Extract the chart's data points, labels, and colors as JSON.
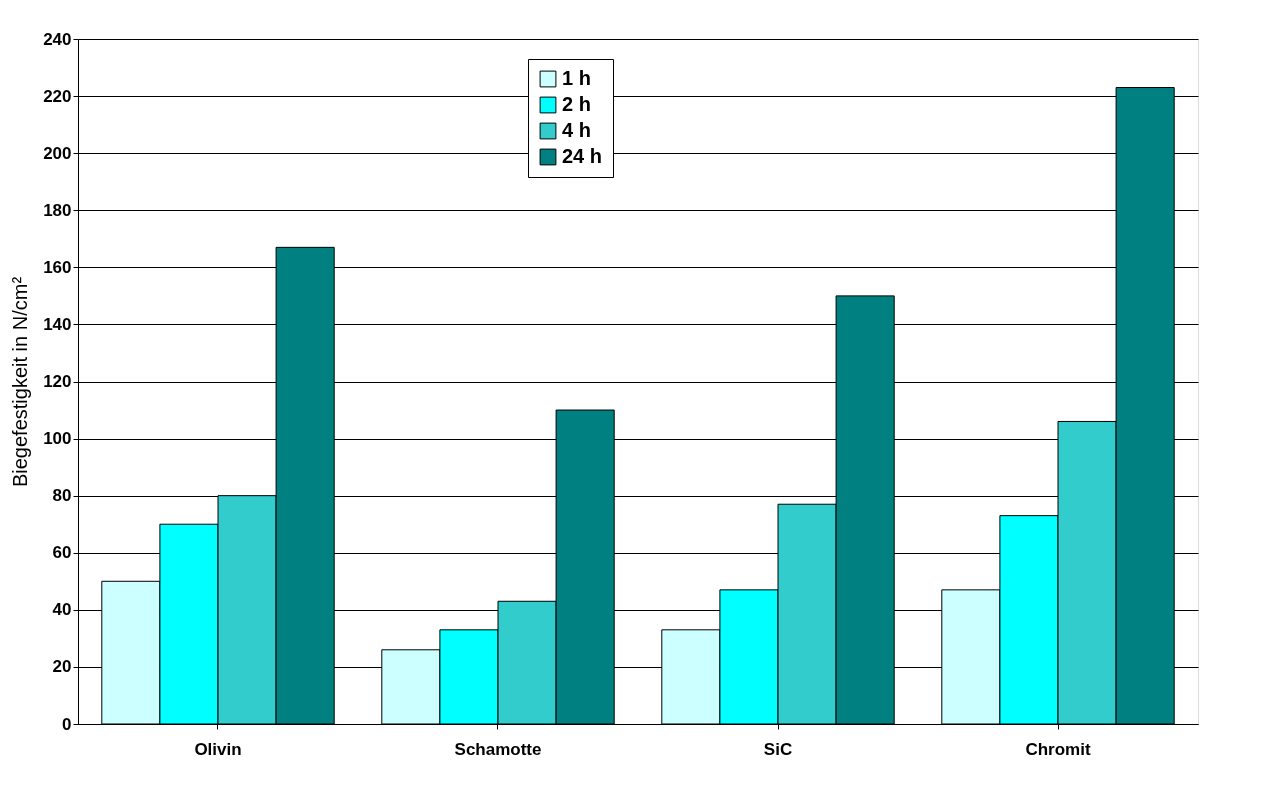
{
  "chart_data": {
    "type": "bar",
    "ylabel": "Biegefestigkeit in N/cm²",
    "categories": [
      "Olivin",
      "Schamotte",
      "SiC",
      "Chromit"
    ],
    "series": [
      {
        "name": "1 h",
        "color": "#ccffff",
        "values": [
          50,
          26,
          33,
          47
        ]
      },
      {
        "name": "2 h",
        "color": "#00ffff",
        "values": [
          70,
          33,
          47,
          73
        ]
      },
      {
        "name": "4 h",
        "color": "#33cccc",
        "values": [
          80,
          43,
          77,
          106
        ]
      },
      {
        "name": "24 h",
        "color": "#008080",
        "values": [
          167,
          110,
          150,
          223
        ]
      }
    ],
    "ylim": [
      0,
      240
    ],
    "yticks": [
      0,
      20,
      40,
      60,
      80,
      100,
      120,
      140,
      160,
      180,
      200,
      220,
      240
    ],
    "grid": "y",
    "legend": "top"
  }
}
